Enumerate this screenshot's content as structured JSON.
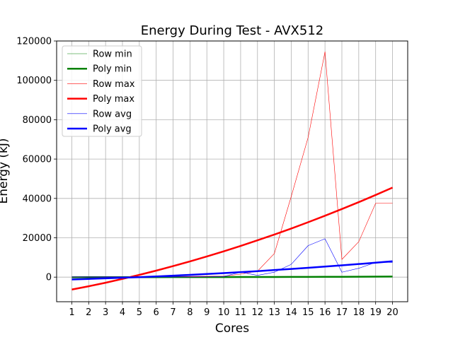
{
  "chart_data": {
    "type": "line",
    "title": "Energy During Test - AVX512",
    "xlabel": "Cores",
    "ylabel": "Energy (kJ)",
    "x": [
      1,
      2,
      3,
      4,
      5,
      6,
      7,
      8,
      9,
      10,
      11,
      12,
      13,
      14,
      15,
      16,
      17,
      18,
      19,
      20
    ],
    "xlim": [
      0.1,
      20.9
    ],
    "ylim": [
      -12500,
      120000
    ],
    "yticks": [
      0,
      20000,
      40000,
      60000,
      80000,
      100000,
      120000
    ],
    "grid": true,
    "legend_position": "top-left",
    "series": [
      {
        "name": "Row min",
        "color": "#008000",
        "style": "thin",
        "values": [
          100,
          100,
          100,
          100,
          100,
          100,
          100,
          100,
          100,
          100,
          100,
          100,
          100,
          100,
          100,
          100,
          100,
          150,
          200,
          300
        ]
      },
      {
        "name": "Poly min",
        "color": "#008000",
        "style": "thick",
        "values": [
          -50,
          -40,
          -30,
          -20,
          -10,
          0,
          10,
          20,
          30,
          40,
          50,
          60,
          80,
          100,
          120,
          150,
          180,
          220,
          260,
          300
        ]
      },
      {
        "name": "Row max",
        "color": "#ff0000",
        "style": "thin",
        "values": [
          100,
          100,
          100,
          100,
          100,
          200,
          200,
          300,
          400,
          500,
          1500,
          3000,
          12000,
          41000,
          71000,
          114500,
          9000,
          18000,
          37500,
          37500
        ]
      },
      {
        "name": "Poly max",
        "color": "#ff0000",
        "style": "thick",
        "values": [
          -6300,
          -4650,
          -2850,
          -900,
          1150,
          3300,
          5600,
          8000,
          10500,
          13100,
          15850,
          18700,
          21650,
          24700,
          27900,
          31200,
          34600,
          38100,
          41750,
          45500
        ]
      },
      {
        "name": "Row avg",
        "color": "#0000ff",
        "style": "thin",
        "values": [
          100,
          100,
          100,
          100,
          100,
          100,
          100,
          150,
          200,
          300,
          2500,
          900,
          2500,
          6500,
          16000,
          19500,
          2500,
          4500,
          7500,
          7500
        ]
      },
      {
        "name": "Poly avg",
        "color": "#0000ff",
        "style": "thick",
        "values": [
          -1200,
          -900,
          -600,
          -300,
          0,
          350,
          750,
          1150,
          1600,
          2050,
          2550,
          3050,
          3600,
          4150,
          4750,
          5350,
          6000,
          6650,
          7350,
          8050
        ]
      }
    ]
  }
}
